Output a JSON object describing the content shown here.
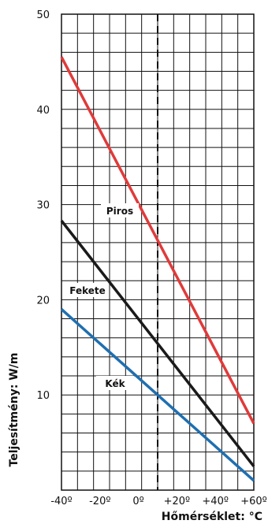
{
  "chart_data": {
    "type": "line",
    "title": "",
    "xlabel": "Hőmérséklet: °C",
    "ylabel": "Teljesítmény: W/m",
    "xlim": [
      -40,
      60
    ],
    "ylim": [
      0,
      50
    ],
    "grid": true,
    "x_ticks": [
      -40,
      -20,
      0,
      20,
      40,
      60
    ],
    "x_tick_labels": [
      "-40º",
      "-20º",
      "0º",
      "+20º",
      "+40º",
      "+60º"
    ],
    "y_ticks": [
      10,
      20,
      30,
      40,
      50
    ],
    "y_tick_labels": [
      "10",
      "20",
      "30",
      "40",
      "50"
    ],
    "reference_line": {
      "x": 10,
      "style": "dashed"
    },
    "series": [
      {
        "name": "Piros",
        "color": "#e03a3a",
        "x": [
          -40,
          60
        ],
        "y": [
          45.5,
          7.0
        ]
      },
      {
        "name": "Fekete",
        "color": "#1a1a1a",
        "x": [
          -40,
          60
        ],
        "y": [
          28.3,
          2.5
        ]
      },
      {
        "name": "Kék",
        "color": "#1f6fb0",
        "x": [
          -40,
          60
        ],
        "y": [
          19.0,
          1.0
        ]
      }
    ]
  }
}
